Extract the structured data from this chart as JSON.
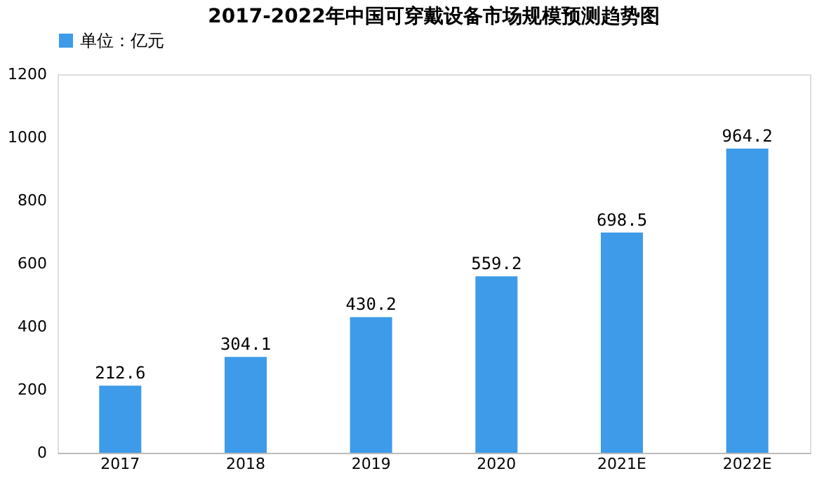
{
  "chart_data": {
    "type": "bar",
    "title": "2017-2022年中国可穿戴设备市场规模预测趋势图",
    "categories": [
      "2017",
      "2018",
      "2019",
      "2020",
      "2021E",
      "2022E"
    ],
    "series": [
      {
        "name": "单位：亿元",
        "color": "#3d9be9",
        "values": [
          212.6,
          304.1,
          430.2,
          559.2,
          698.5,
          964.2
        ]
      }
    ],
    "ylim": [
      0,
      1200
    ],
    "yticks": [
      0,
      200,
      400,
      600,
      800,
      1000,
      1200
    ],
    "grid": false,
    "legend": "top",
    "data_labels": true
  }
}
